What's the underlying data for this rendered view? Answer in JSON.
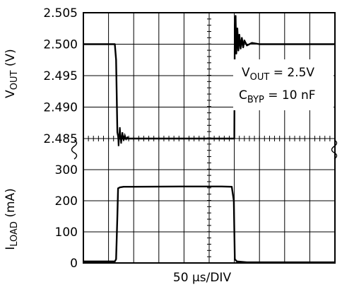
{
  "chart_data": [
    {
      "type": "line",
      "panel": "top",
      "x_units_label": "50 µs/DIV",
      "x_divisions": 10,
      "xlim": [
        0,
        10
      ],
      "ylim": [
        2.485,
        2.505
      ],
      "yticks": [
        "2.505",
        "2.500",
        "2.495",
        "2.490",
        "2.485"
      ],
      "yticks_values": [
        2.505,
        2.5,
        2.495,
        2.49,
        2.485
      ],
      "ylabel": {
        "main": "V",
        "sub": "OUT",
        "unit": " (V)"
      },
      "grid": true,
      "series": [
        {
          "x": [
            0,
            1.0,
            1.25,
            1.3,
            1.35,
            1.4,
            6.0,
            6.02,
            6.05,
            6.08,
            6.12,
            6.16,
            6.2,
            6.25,
            6.3,
            6.35,
            6.4,
            6.5,
            6.7,
            7.0,
            10
          ],
          "y": [
            2.5,
            2.5,
            2.5,
            2.4975,
            2.486,
            2.485,
            2.485,
            2.503,
            2.5045,
            2.4985,
            2.5025,
            2.499,
            2.5015,
            2.4993,
            2.501,
            2.4995,
            2.5006,
            2.4998,
            2.5002,
            2.5,
            2.5
          ]
        }
      ],
      "annotations": [
        {
          "main": "V",
          "sub": "OUT",
          "rest": " = 2.5V"
        },
        {
          "main": "C",
          "sub": "BYP",
          "rest": " = 10 nF"
        }
      ]
    },
    {
      "type": "line",
      "panel": "bottom",
      "x_units_label": "50 µs/DIV",
      "x_divisions": 10,
      "xlim": [
        0,
        10
      ],
      "ylim": [
        0,
        350
      ],
      "yticks": [
        "300",
        "200",
        "100",
        "0"
      ],
      "yticks_values": [
        300,
        200,
        100,
        0
      ],
      "ylabel": {
        "main": "I",
        "sub": "LOAD",
        "unit": " (mA)"
      },
      "grid": true,
      "series": [
        {
          "x": [
            0,
            1.25,
            1.3,
            1.35,
            1.38,
            1.45,
            1.6,
            2.0,
            4.0,
            5.5,
            5.9,
            5.98,
            6.02,
            6.1,
            6.5,
            10
          ],
          "y": [
            5,
            5,
            12,
            150,
            240,
            243,
            245,
            245,
            246,
            246,
            245,
            200,
            12,
            5,
            2,
            2
          ]
        }
      ]
    }
  ],
  "break_marks": true
}
